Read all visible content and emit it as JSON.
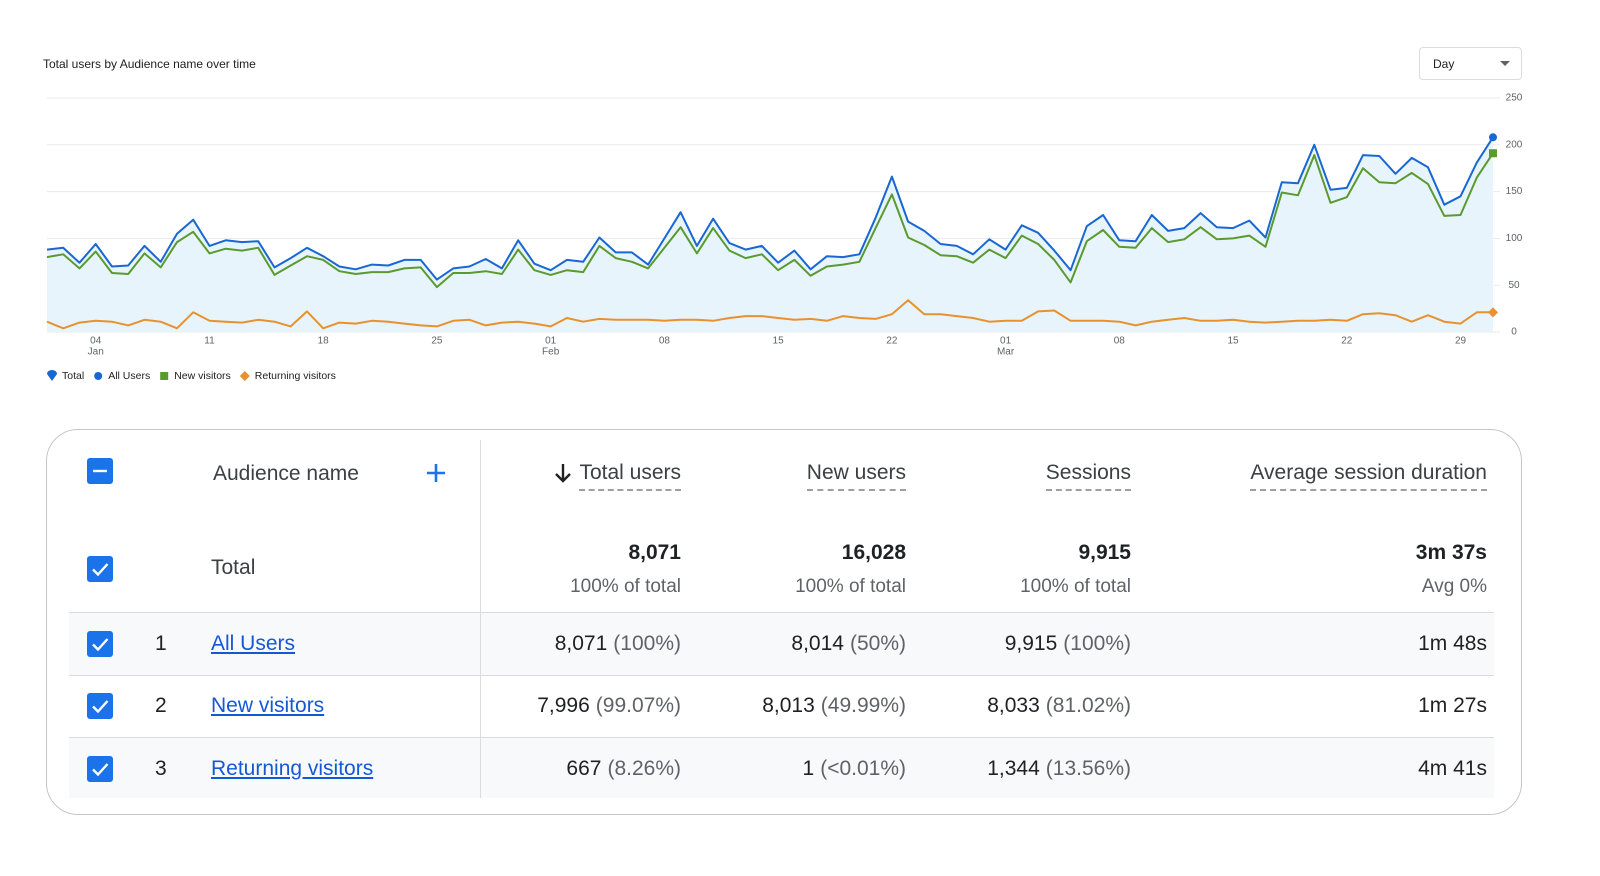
{
  "dropdown": "Day",
  "chart_data": {
    "type": "line",
    "title": "Total users by Audience name over time",
    "categories": [
      null,
      null,
      null,
      "04",
      null,
      null,
      null,
      null,
      null,
      null,
      "11",
      null,
      null,
      null,
      null,
      null,
      null,
      "18",
      null,
      null,
      null,
      null,
      null,
      null,
      "25",
      null,
      null,
      null,
      null,
      null,
      null,
      "01",
      null,
      null,
      null,
      null,
      null,
      null,
      "08",
      null,
      null,
      null,
      null,
      null,
      null,
      "15",
      null,
      null,
      null,
      null,
      null,
      null,
      "22",
      null,
      null,
      null,
      null,
      null,
      null,
      "01",
      null,
      null,
      null,
      null,
      null,
      null,
      "08",
      null,
      null,
      null,
      null,
      null,
      null,
      "15",
      null,
      null,
      null,
      null,
      null,
      null,
      "22",
      null,
      null,
      null,
      null,
      null,
      null,
      "29",
      null,
      null
    ],
    "months": [
      null,
      null,
      null,
      "Jan",
      null,
      null,
      null,
      null,
      null,
      null,
      null,
      null,
      null,
      null,
      null,
      null,
      null,
      null,
      null,
      null,
      null,
      null,
      null,
      null,
      null,
      null,
      null,
      null,
      null,
      null,
      null,
      "Feb",
      null,
      null,
      null,
      null,
      null,
      null,
      null,
      null,
      null,
      null,
      null,
      null,
      null,
      null,
      null,
      null,
      null,
      null,
      null,
      null,
      null,
      null,
      null,
      null,
      null,
      null,
      null,
      "Mar",
      null,
      null,
      null,
      null,
      null,
      null,
      null,
      null,
      null,
      null,
      null,
      null,
      null,
      null,
      null,
      null,
      null,
      null,
      null,
      null,
      null,
      null,
      null,
      null,
      null,
      null,
      null,
      null
    ],
    "series": [
      {
        "name": "Total",
        "color": "#1967d2",
        "marker": "pin",
        "area": true,
        "values": [
          88,
          90,
          74,
          94,
          70,
          71,
          92,
          75,
          105,
          120,
          92,
          98,
          96,
          97,
          69,
          79,
          90,
          81,
          70,
          67,
          72,
          71,
          77,
          77,
          56,
          68,
          70,
          78,
          68,
          98,
          73,
          66,
          77,
          75,
          101,
          85,
          85,
          72,
          100,
          128,
          92,
          121,
          95,
          88,
          92,
          74,
          87,
          67,
          81,
          80,
          83,
          122,
          166,
          118,
          108,
          94,
          92,
          83,
          99,
          88,
          114,
          106,
          87,
          66,
          113,
          125,
          98,
          97,
          125,
          108,
          111,
          127,
          112,
          111,
          119,
          101,
          160,
          159,
          200,
          152,
          154,
          189,
          188,
          169,
          186,
          176,
          136,
          145,
          181,
          208
        ]
      },
      {
        "name": "All Users",
        "color": "#1967d2",
        "marker": "circle",
        "values": [
          88,
          90,
          74,
          94,
          70,
          71,
          92,
          75,
          105,
          120,
          92,
          98,
          96,
          97,
          69,
          79,
          90,
          81,
          70,
          67,
          72,
          71,
          77,
          77,
          56,
          68,
          70,
          78,
          68,
          98,
          73,
          66,
          77,
          75,
          101,
          85,
          85,
          72,
          100,
          128,
          92,
          121,
          95,
          88,
          92,
          74,
          87,
          67,
          81,
          80,
          83,
          122,
          166,
          118,
          108,
          94,
          92,
          83,
          99,
          88,
          114,
          106,
          87,
          66,
          113,
          125,
          98,
          97,
          125,
          108,
          111,
          127,
          112,
          111,
          119,
          101,
          160,
          159,
          200,
          152,
          154,
          189,
          188,
          169,
          186,
          176,
          136,
          145,
          181,
          208
        ]
      },
      {
        "name": "New visitors",
        "color": "#5a9a2e",
        "marker": "square",
        "values": [
          80,
          83,
          68,
          86,
          63,
          62,
          84,
          69,
          96,
          107,
          84,
          89,
          87,
          90,
          61,
          71,
          81,
          77,
          65,
          62,
          64,
          64,
          68,
          69,
          48,
          63,
          63,
          65,
          62,
          88,
          66,
          61,
          66,
          64,
          92,
          79,
          75,
          68,
          90,
          112,
          84,
          111,
          87,
          79,
          83,
          66,
          77,
          60,
          70,
          72,
          75,
          111,
          147,
          101,
          93,
          82,
          81,
          74,
          88,
          79,
          103,
          94,
          77,
          53,
          97,
          109,
          91,
          90,
          111,
          96,
          99,
          112,
          99,
          100,
          103,
          91,
          149,
          146,
          189,
          138,
          144,
          175,
          160,
          159,
          170,
          158,
          124,
          125,
          165,
          191
        ]
      },
      {
        "name": "Returning visitors",
        "color": "#e8912d",
        "marker": "diamond",
        "values": [
          11,
          4,
          10,
          12,
          11,
          7,
          13,
          11,
          4,
          21,
          12,
          11,
          10,
          13,
          11,
          6,
          22,
          4,
          10,
          9,
          12,
          11,
          9,
          7,
          6,
          12,
          13,
          7,
          10,
          11,
          9,
          6,
          15,
          11,
          14,
          13,
          13,
          13,
          12,
          13,
          13,
          12,
          15,
          17,
          17,
          15,
          13,
          14,
          12,
          17,
          15,
          14,
          19,
          34,
          19,
          19,
          17,
          15,
          11,
          12,
          12,
          22,
          23,
          12,
          12,
          12,
          11,
          7,
          11,
          13,
          15,
          12,
          12,
          13,
          11,
          10,
          11,
          12,
          12,
          13,
          12,
          19,
          20,
          18,
          11,
          18,
          11,
          9,
          21,
          21
        ]
      }
    ],
    "ylim": [
      0,
      250
    ],
    "yticks": [
      0,
      50,
      100,
      150,
      200,
      250
    ],
    "grid": true
  },
  "table": {
    "headers": [
      "Audience name",
      "Total users",
      "New users",
      "Sessions",
      "Average session duration"
    ],
    "total": {
      "label": "Total",
      "cells": [
        {
          "value": "8,071",
          "sub": "100% of total"
        },
        {
          "value": "16,028",
          "sub": "100% of total"
        },
        {
          "value": "9,915",
          "sub": "100% of total"
        },
        {
          "value": "3m 37s",
          "sub": "Avg 0%"
        }
      ]
    },
    "rows": [
      {
        "index": "1",
        "name": "All Users",
        "cells": [
          {
            "value": "8,071",
            "pct": "(100%)"
          },
          {
            "value": "8,014",
            "pct": "(50%)"
          },
          {
            "value": "9,915",
            "pct": "(100%)"
          },
          {
            "value": "1m 48s"
          }
        ]
      },
      {
        "index": "2",
        "name": "New visitors",
        "cells": [
          {
            "value": "7,996",
            "pct": "(99.07%)"
          },
          {
            "value": "8,013",
            "pct": "(49.99%)"
          },
          {
            "value": "8,033",
            "pct": "(81.02%)"
          },
          {
            "value": "1m 27s"
          }
        ]
      },
      {
        "index": "3",
        "name": "Returning visitors",
        "cells": [
          {
            "value": "667",
            "pct": "(8.26%)"
          },
          {
            "value": "1",
            "pct": "(<0.01%)"
          },
          {
            "value": "1,344",
            "pct": "(13.56%)"
          },
          {
            "value": "4m 41s"
          }
        ]
      }
    ]
  }
}
